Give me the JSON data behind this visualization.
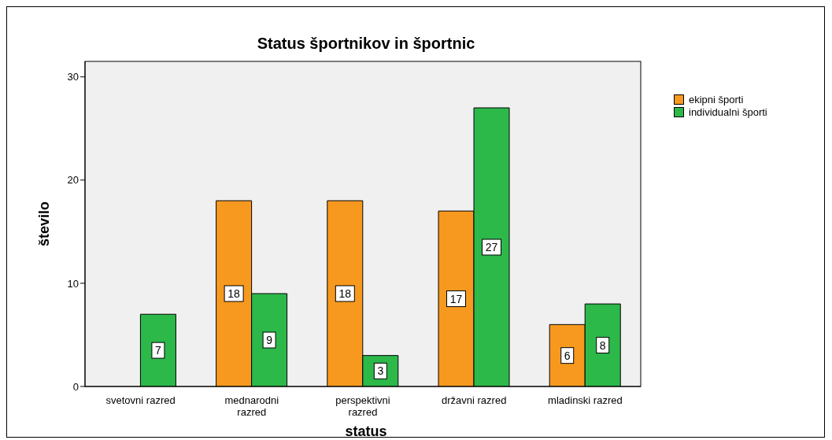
{
  "chart_data": {
    "type": "bar",
    "title": "Status športnikov in športnic",
    "xlabel": "status",
    "ylabel": "število",
    "categories": [
      "svetovni razred",
      "mednarodni razred",
      "perspektivni razred",
      "državni razred",
      "mladinski razred"
    ],
    "series": [
      {
        "name": "ekipni športi",
        "color": "#f7991f",
        "values": [
          null,
          18,
          18,
          17,
          6
        ]
      },
      {
        "name": "individualni športi",
        "color": "#2db84a",
        "values": [
          7,
          9,
          3,
          27,
          8
        ]
      }
    ],
    "ylim": [
      0,
      31.5
    ],
    "yticks": [
      0,
      10,
      20,
      30
    ],
    "data_labels": true,
    "legend": "top right",
    "grid": false
  }
}
